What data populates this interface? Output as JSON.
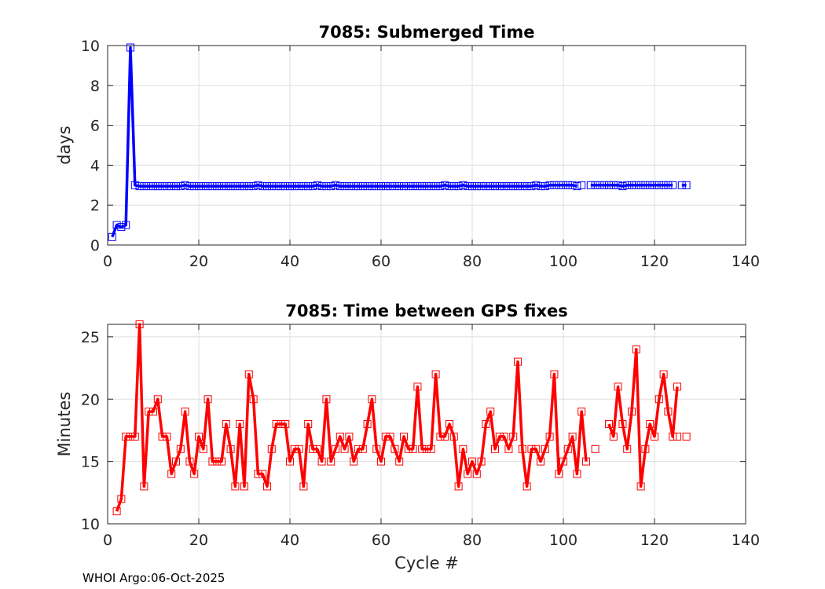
{
  "footer": "WHOI Argo:06-Oct-2025",
  "chart_data": [
    {
      "type": "line",
      "title": "7085: Submerged Time",
      "xlabel": "",
      "ylabel": "days",
      "xlim": [
        0,
        140
      ],
      "ylim": [
        0,
        10
      ],
      "xticks": [
        0,
        20,
        40,
        60,
        80,
        100,
        120,
        140
      ],
      "yticks": [
        0,
        2,
        4,
        6,
        8,
        10
      ],
      "grid": true,
      "color": "#0000ff",
      "marker": "square",
      "segments": [
        {
          "x": [
            1,
            2,
            3,
            4,
            5,
            6,
            7,
            8,
            9,
            10,
            11,
            12,
            13,
            14,
            15,
            16,
            17,
            18,
            19,
            20,
            21,
            22,
            23,
            24,
            25,
            26,
            27,
            28,
            29,
            30,
            31,
            32,
            33,
            34,
            35,
            36,
            37,
            38,
            39,
            40,
            41,
            42,
            43,
            44,
            45,
            46,
            47,
            48,
            49,
            50,
            51,
            52,
            53,
            54,
            55,
            56,
            57,
            58,
            59,
            60,
            61,
            62,
            63,
            64,
            65,
            66,
            67,
            68,
            69,
            70,
            71,
            72,
            73,
            74,
            75,
            76,
            77,
            78,
            79,
            80,
            81,
            82,
            83,
            84,
            85,
            86,
            87,
            88,
            89,
            90,
            91,
            92,
            93,
            94,
            95,
            96,
            97,
            98,
            99,
            100,
            101,
            102,
            103
          ],
          "y": [
            0.4,
            1.0,
            0.9,
            1.0,
            9.9,
            3.0,
            2.95,
            2.95,
            2.95,
            2.95,
            2.95,
            2.95,
            2.95,
            2.95,
            2.95,
            2.95,
            3.0,
            2.95,
            2.95,
            2.95,
            2.95,
            2.95,
            2.95,
            2.95,
            2.95,
            2.95,
            2.95,
            2.95,
            2.95,
            2.95,
            2.95,
            2.95,
            3.0,
            2.95,
            2.95,
            2.95,
            2.95,
            2.95,
            2.95,
            2.95,
            2.95,
            2.95,
            2.95,
            2.95,
            2.95,
            3.0,
            2.95,
            2.95,
            2.95,
            3.0,
            2.95,
            2.95,
            2.95,
            2.95,
            2.95,
            2.95,
            2.95,
            2.95,
            2.95,
            2.95,
            2.95,
            2.95,
            2.95,
            2.95,
            2.95,
            2.95,
            2.95,
            2.95,
            2.95,
            2.95,
            2.95,
            2.95,
            2.95,
            3.0,
            2.95,
            2.95,
            2.95,
            3.0,
            2.95,
            2.95,
            2.95,
            2.95,
            2.95,
            2.95,
            2.95,
            2.95,
            2.95,
            2.95,
            2.95,
            2.95,
            2.95,
            2.95,
            2.95,
            3.0,
            2.95,
            2.95,
            3.0,
            3.0,
            3.0,
            3.0,
            3.0,
            3.0,
            2.95
          ]
        },
        {
          "x": [
            104
          ],
          "y": [
            3.0
          ]
        },
        {
          "x": [
            106,
            107,
            108,
            109,
            110,
            111,
            112,
            113,
            114,
            115,
            116,
            117,
            118,
            119,
            120,
            121,
            122,
            123,
            124
          ],
          "y": [
            3.0,
            3.0,
            3.0,
            3.0,
            3.0,
            3.0,
            3.0,
            2.95,
            3.0,
            3.0,
            3.0,
            3.0,
            3.0,
            3.0,
            3.0,
            3.0,
            3.0,
            3.0,
            3.0
          ]
        },
        {
          "x": [
            126,
            127
          ],
          "y": [
            3.0,
            3.0
          ]
        }
      ]
    },
    {
      "type": "line",
      "title": "7085: Time between GPS fixes",
      "xlabel": "Cycle #",
      "ylabel": "Minutes",
      "xlim": [
        0,
        140
      ],
      "ylim": [
        10,
        26
      ],
      "xticks": [
        0,
        20,
        40,
        60,
        80,
        100,
        120,
        140
      ],
      "yticks": [
        10,
        15,
        20,
        25
      ],
      "grid": true,
      "color": "#ff0000",
      "marker": "square",
      "segments": [
        {
          "x": [
            2,
            3,
            4,
            5,
            6,
            7,
            8,
            9,
            10,
            11,
            12,
            13,
            14,
            15,
            16,
            17,
            18,
            19,
            20,
            21,
            22,
            23,
            24,
            25,
            26,
            27,
            28,
            29,
            30,
            31,
            32,
            33,
            34,
            35,
            36,
            37,
            38,
            39,
            40,
            41,
            42,
            43,
            44,
            45,
            46,
            47,
            48,
            49,
            50,
            51,
            52,
            53,
            54,
            55,
            56,
            57,
            58,
            59,
            60,
            61,
            62,
            63,
            64,
            65,
            66,
            67,
            68,
            69,
            70,
            71,
            72,
            73,
            74,
            75,
            76,
            77,
            78,
            79,
            80,
            81,
            82,
            83,
            84,
            85,
            86,
            87,
            88,
            89,
            90,
            91,
            92,
            93,
            94,
            95,
            96,
            97,
            98,
            99,
            100,
            101,
            102,
            103,
            104,
            105
          ],
          "y": [
            11,
            12,
            17,
            17,
            17,
            26,
            13,
            19,
            19,
            20,
            17,
            17,
            14,
            15,
            16,
            19,
            15,
            14,
            17,
            16,
            20,
            15,
            15,
            15,
            18,
            16,
            13,
            18,
            13,
            22,
            20,
            14,
            14,
            13,
            16,
            18,
            18,
            18,
            15,
            16,
            16,
            13,
            18,
            16,
            16,
            15,
            20,
            15,
            16,
            17,
            16,
            17,
            15,
            16,
            16,
            18,
            20,
            16,
            15,
            17,
            17,
            16,
            15,
            17,
            16,
            16,
            21,
            16,
            16,
            16,
            22,
            17,
            17,
            18,
            17,
            13,
            16,
            14,
            15,
            14,
            15,
            18,
            19,
            16,
            17,
            17,
            16,
            17,
            23,
            16,
            13,
            16,
            16,
            15,
            16,
            17,
            22,
            14,
            15,
            16,
            17,
            14,
            19,
            15
          ]
        },
        {
          "x": [
            107
          ],
          "y": [
            16
          ]
        },
        {
          "x": [
            110,
            111,
            112,
            113,
            114,
            115,
            116,
            117,
            118,
            119,
            120,
            121,
            122,
            123,
            124,
            125
          ],
          "y": [
            18,
            17,
            21,
            18,
            16,
            19,
            24,
            13,
            16,
            18,
            17,
            20,
            22,
            19,
            17,
            21
          ]
        },
        {
          "x": [
            125
          ],
          "y": [
            17
          ]
        },
        {
          "x": [
            127
          ],
          "y": [
            17
          ]
        }
      ]
    }
  ]
}
